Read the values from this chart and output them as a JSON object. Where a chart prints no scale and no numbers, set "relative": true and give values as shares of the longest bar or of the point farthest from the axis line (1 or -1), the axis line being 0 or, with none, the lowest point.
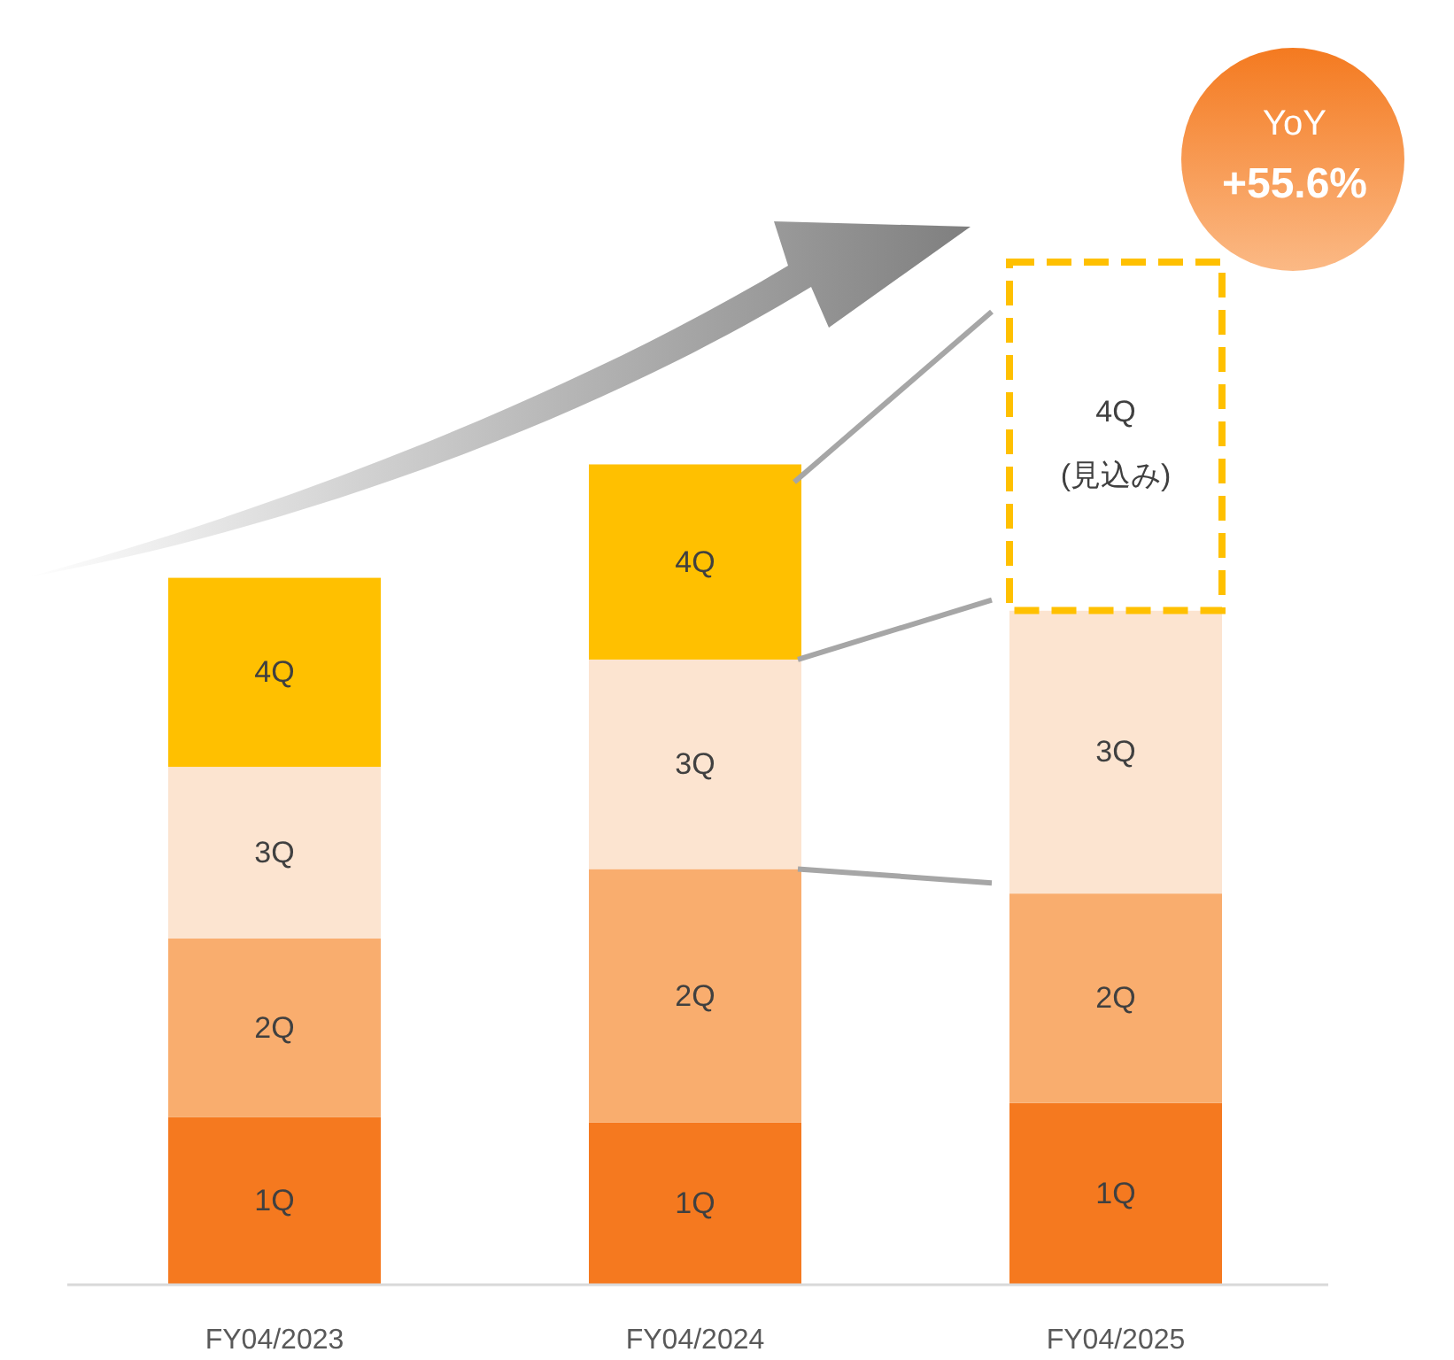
{
  "chart_data": {
    "type": "bar",
    "stacked": true,
    "relative": true,
    "categories": [
      "FY04/2023",
      "FY04/2024",
      "FY04/2025"
    ],
    "series": [
      {
        "name": "1Q",
        "color": "#f5791f",
        "values": [
          0.163,
          0.158,
          0.177
        ]
      },
      {
        "name": "2Q",
        "color": "#f9ad6e",
        "values": [
          0.175,
          0.248,
          0.205
        ]
      },
      {
        "name": "3Q",
        "color": "#fce4d0",
        "values": [
          0.168,
          0.205,
          0.277
        ]
      },
      {
        "name": "4Q",
        "color": "#ffc000",
        "colors": [
          "#ffc000",
          "#ffc000",
          "#ffffff"
        ],
        "line_style": "dashed",
        "values": [
          0.185,
          0.191,
          0.341
        ]
      }
    ],
    "annotations": [
      "(見込み)",
      "YoY",
      "+55.6%"
    ]
  }
}
